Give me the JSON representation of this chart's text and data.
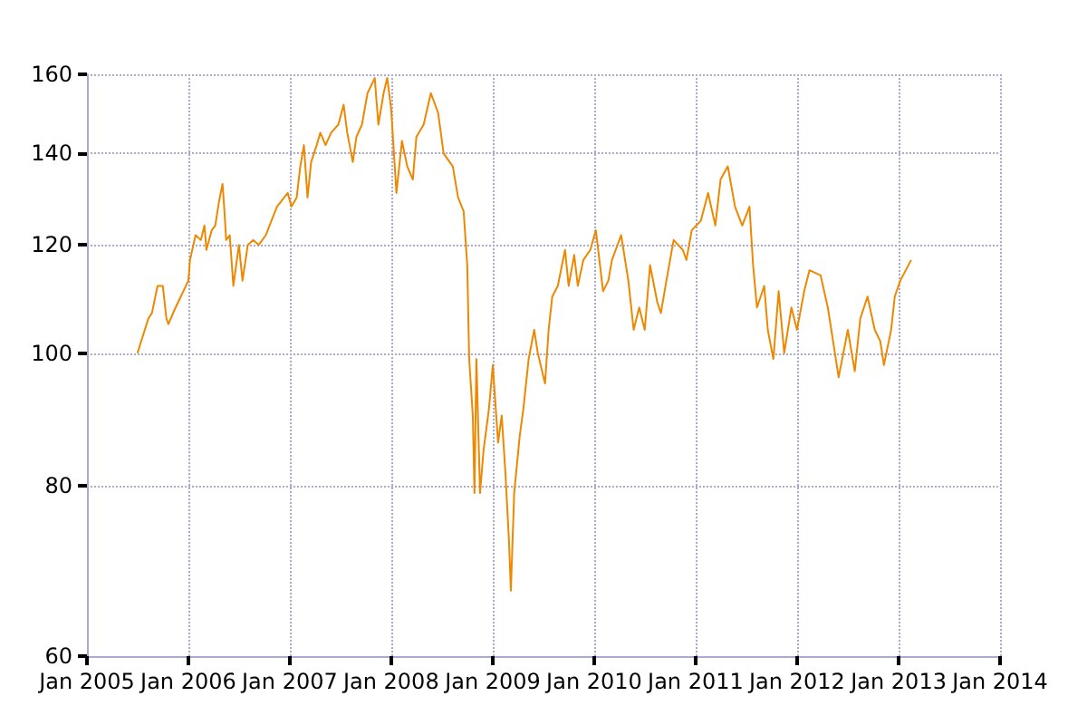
{
  "chart_data": {
    "type": "line",
    "log": "y",
    "grid": true,
    "marker": "none",
    "line_style": "solid",
    "xlim": [
      "2005-01",
      "2014-01"
    ],
    "xticks": [
      {
        "value": "2005-01",
        "label": "Jan 2005"
      },
      {
        "value": "2006-01",
        "label": "Jan 2006"
      },
      {
        "value": "2007-01",
        "label": "Jan 2007"
      },
      {
        "value": "2008-01",
        "label": "Jan 2008"
      },
      {
        "value": "2009-01",
        "label": "Jan 2009"
      },
      {
        "value": "2010-01",
        "label": "Jan 2010"
      },
      {
        "value": "2011-01",
        "label": "Jan 2011"
      },
      {
        "value": "2012-01",
        "label": "Jan 2012"
      },
      {
        "value": "2013-01",
        "label": "Jan 2013"
      },
      {
        "value": "2014-01",
        "label": "Jan 2014"
      }
    ],
    "ylim": [
      60,
      160
    ],
    "yticks": [
      60,
      80,
      100,
      120,
      140,
      160
    ],
    "x": [
      "2005-07-02",
      "2005-07-15",
      "2005-08-10",
      "2005-08-23",
      "2005-09-12",
      "2005-10-01",
      "2005-10-14",
      "2005-10-21",
      "2005-11-16",
      "2005-12-05",
      "2006-01-01",
      "2006-01-07",
      "2006-01-27",
      "2006-02-15",
      "2006-02-28",
      "2006-03-07",
      "2006-03-26",
      "2006-04-08",
      "2006-04-21",
      "2006-05-04",
      "2006-05-11",
      "2006-05-17",
      "2006-05-30",
      "2006-06-12",
      "2006-07-02",
      "2006-07-15",
      "2006-08-03",
      "2006-08-23",
      "2006-09-11",
      "2006-10-07",
      "2006-10-27",
      "2006-11-16",
      "2006-12-12",
      "2006-12-25",
      "2007-01-07",
      "2007-01-26",
      "2007-02-08",
      "2007-02-21",
      "2007-03-06",
      "2007-03-19",
      "2007-04-08",
      "2007-04-21",
      "2007-05-10",
      "2007-05-30",
      "2007-06-25",
      "2007-07-14",
      "2007-07-27",
      "2007-08-16",
      "2007-08-29",
      "2007-09-18",
      "2007-10-08",
      "2007-11-03",
      "2007-11-16",
      "2007-12-05",
      "2007-12-18",
      "2008-01-01",
      "2008-01-20",
      "2008-02-09",
      "2008-02-28",
      "2008-03-19",
      "2008-04-01",
      "2008-04-27",
      "2008-05-23",
      "2008-06-18",
      "2008-07-08",
      "2008-08-10",
      "2008-08-29",
      "2008-09-18",
      "2008-09-25",
      "2008-10-01",
      "2008-10-08",
      "2008-10-21",
      "2008-10-27",
      "2008-11-03",
      "2008-11-16",
      "2008-11-29",
      "2008-12-18",
      "2009-01-01",
      "2009-01-20",
      "2009-02-02",
      "2009-02-15",
      "2009-02-28",
      "2009-03-07",
      "2009-03-19",
      "2009-04-08",
      "2009-04-21",
      "2009-05-10",
      "2009-05-30",
      "2009-06-12",
      "2009-07-08",
      "2009-07-21",
      "2009-08-03",
      "2009-08-23",
      "2009-09-18",
      "2009-10-01",
      "2009-10-21",
      "2009-11-03",
      "2009-11-23",
      "2009-12-18",
      "2010-01-07",
      "2010-02-02",
      "2010-02-21",
      "2010-03-06",
      "2010-04-08",
      "2010-05-04",
      "2010-05-23",
      "2010-06-12",
      "2010-07-02",
      "2010-07-21",
      "2010-08-16",
      "2010-08-29",
      "2010-09-18",
      "2010-10-14",
      "2010-11-16",
      "2010-11-29",
      "2010-12-18",
      "2011-01-20",
      "2011-02-15",
      "2011-03-13",
      "2011-04-01",
      "2011-04-27",
      "2011-05-23",
      "2011-06-18",
      "2011-07-14",
      "2011-07-27",
      "2011-08-10",
      "2011-09-05",
      "2011-09-18",
      "2011-10-08",
      "2011-10-27",
      "2011-11-16",
      "2011-12-12",
      "2012-01-01",
      "2012-01-27",
      "2012-02-15",
      "2012-03-26",
      "2012-04-21",
      "2012-05-10",
      "2012-05-30",
      "2012-07-02",
      "2012-07-27",
      "2012-08-16",
      "2012-09-11",
      "2012-10-07",
      "2012-10-27",
      "2012-11-09",
      "2012-12-05",
      "2012-12-18",
      "2013-01-07",
      "2013-02-15"
    ],
    "series": [
      {
        "color": "#ee8800",
        "values": [
          100,
          102,
          106,
          107,
          112,
          112,
          106,
          105,
          108,
          110,
          113,
          117,
          122,
          121,
          124,
          119,
          123,
          124,
          129,
          133,
          127,
          121,
          122,
          112,
          120,
          113,
          120,
          121,
          120,
          122,
          125,
          128,
          130,
          131,
          128,
          130,
          137,
          142,
          130,
          138,
          142,
          145,
          142,
          145,
          147,
          152,
          145,
          138,
          144,
          147,
          155,
          159,
          147,
          155,
          159,
          151,
          131,
          143,
          137,
          134,
          144,
          147,
          155,
          150,
          140,
          137,
          130,
          127,
          121,
          116,
          99,
          90,
          79,
          99,
          79,
          85,
          91,
          98,
          86,
          90,
          82,
          73,
          67,
          79,
          87,
          91,
          99,
          104,
          100,
          95,
          104,
          110,
          112,
          119,
          112,
          118,
          112,
          117,
          119,
          123,
          111,
          113,
          117,
          122,
          113,
          104,
          108,
          104,
          116,
          109,
          107,
          113,
          121,
          119,
          117,
          123,
          125,
          131,
          124,
          134,
          137,
          128,
          124,
          128,
          116,
          108,
          112,
          104,
          99,
          111,
          100,
          108,
          104,
          111,
          115,
          114,
          108,
          102,
          96,
          104,
          97,
          106,
          110,
          104,
          102,
          98,
          104,
          110,
          113,
          117
        ]
      }
    ]
  }
}
